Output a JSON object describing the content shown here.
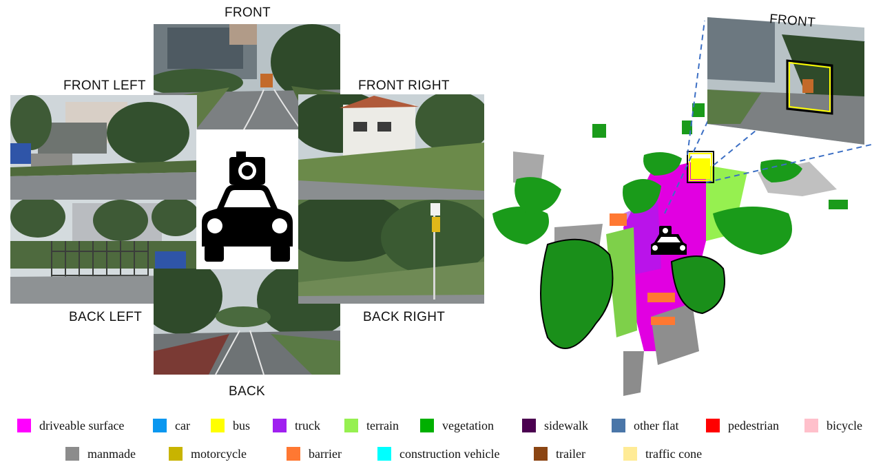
{
  "cameras": {
    "front": "FRONT",
    "front_left": "FRONT LEFT",
    "front_right": "FRONT RIGHT",
    "back_left": "BACK LEFT",
    "back": "BACK",
    "back_right": "BACK RIGHT"
  },
  "occupancy": {
    "front_inset_label": "FRONT"
  },
  "legend": [
    {
      "label": "driveable surface",
      "color": "#ff00ff"
    },
    {
      "label": "car",
      "color": "#0a97f0"
    },
    {
      "label": "bus",
      "color": "#ffff00"
    },
    {
      "label": "truck",
      "color": "#a020f0"
    },
    {
      "label": "terrain",
      "color": "#96f050"
    },
    {
      "label": "vegetation",
      "color": "#00b000"
    },
    {
      "label": "sidewalk",
      "color": "#4b0050"
    },
    {
      "label": "other flat",
      "color": "#4a76a8"
    },
    {
      "label": "pedestrian",
      "color": "#ff0000"
    },
    {
      "label": "bicycle",
      "color": "#ffc0cb"
    },
    {
      "label": "manmade",
      "color": "#8c8c8c"
    },
    {
      "label": "motorcycle",
      "color": "#c8b400"
    },
    {
      "label": "barrier",
      "color": "#ff7832"
    },
    {
      "label": "construction vehicle",
      "color": "#00ffff"
    },
    {
      "label": "trailer",
      "color": "#8b4513"
    },
    {
      "label": "traffic cone",
      "color": "#ffeb96"
    }
  ]
}
